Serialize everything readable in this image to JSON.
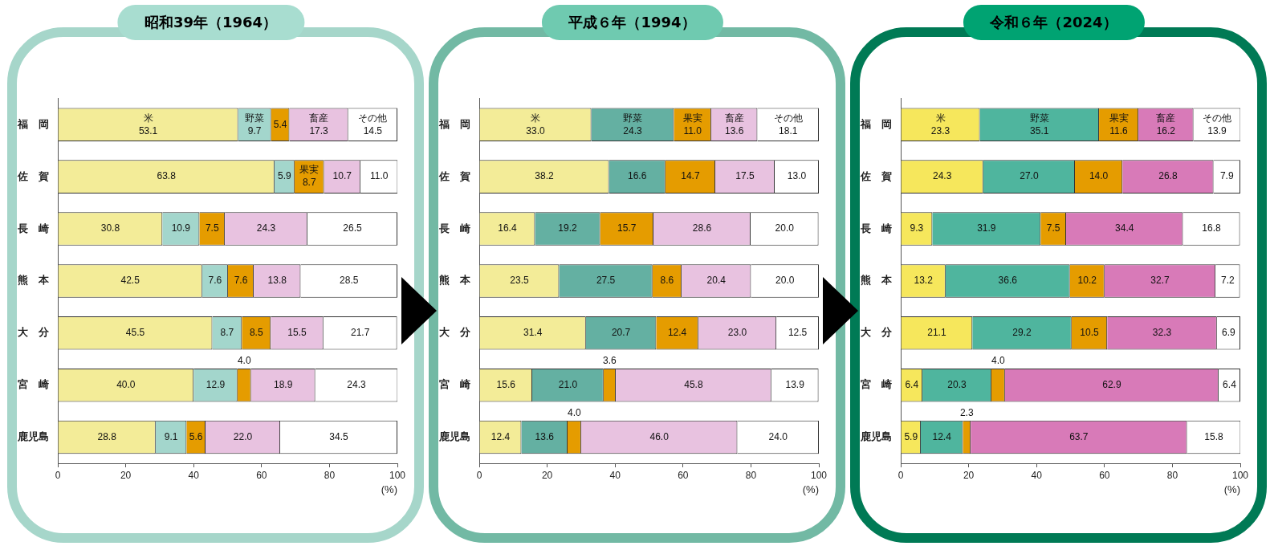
{
  "chart_data": [
    {
      "type": "bar",
      "title": "昭和39年（1964）",
      "orientation": "horizontal",
      "stacked": true,
      "legend": false,
      "grid": false,
      "xlabel": "(%)",
      "xlim": [
        0,
        100
      ],
      "xticks": [
        0,
        20,
        40,
        60,
        80,
        100
      ],
      "categories": [
        "福　岡",
        "佐　賀",
        "長　崎",
        "熊　本",
        "大　分",
        "宮　崎",
        "鹿児島"
      ],
      "series": [
        {
          "name": "米",
          "color": "#f3ec98",
          "values": [
            53.1,
            63.8,
            30.8,
            42.5,
            45.5,
            40.0,
            28.8
          ],
          "value_labels": [
            "53.1",
            "63.8",
            "30.8",
            "42.5",
            "45.5",
            "40.0",
            "28.8"
          ]
        },
        {
          "name": "野菜",
          "color": "#a3d6cc",
          "values": [
            9.7,
            5.9,
            10.9,
            7.6,
            8.7,
            12.9,
            9.1
          ],
          "value_labels": [
            "9.7",
            "5.9",
            "10.9",
            "7.6",
            "8.7",
            "12.9",
            "9.1"
          ]
        },
        {
          "name": "果実",
          "color": "#e59c00",
          "values": [
            5.4,
            8.7,
            7.5,
            7.6,
            8.5,
            4.0,
            5.6
          ],
          "value_labels": [
            "5.4",
            "8.7",
            "7.5",
            "7.6",
            "8.5",
            "4.0",
            "5.6"
          ]
        },
        {
          "name": "畜産",
          "color": "#e8c2e0",
          "values": [
            17.3,
            10.7,
            24.3,
            13.8,
            15.5,
            18.9,
            22.0
          ],
          "value_labels": [
            "17.3",
            "10.7",
            "24.3",
            "13.8",
            "15.5",
            "18.9",
            "22.0"
          ]
        },
        {
          "name": "その他",
          "color": "#ffffff",
          "values": [
            14.5,
            11.0,
            26.5,
            28.5,
            21.7,
            24.3,
            34.5
          ],
          "value_labels": [
            "14.5",
            "11.0",
            "26.5",
            "28.5",
            "21.7",
            "24.3",
            "34.5"
          ]
        }
      ]
    },
    {
      "type": "bar",
      "title": "平成６年（1994）",
      "orientation": "horizontal",
      "stacked": true,
      "legend": false,
      "grid": false,
      "xlabel": "(%)",
      "xlim": [
        0,
        100
      ],
      "xticks": [
        0,
        20,
        40,
        60,
        80,
        100
      ],
      "categories": [
        "福　岡",
        "佐　賀",
        "長　崎",
        "熊　本",
        "大　分",
        "宮　崎",
        "鹿児島"
      ],
      "series": [
        {
          "name": "米",
          "color": "#f3ec98",
          "values": [
            33.0,
            38.2,
            16.4,
            23.5,
            31.4,
            15.6,
            12.4
          ],
          "value_labels": [
            "33.0",
            "38.2",
            "16.4",
            "23.5",
            "31.4",
            "15.6",
            "12.4"
          ]
        },
        {
          "name": "野菜",
          "color": "#64b0a2",
          "values": [
            24.3,
            16.6,
            19.2,
            27.5,
            20.7,
            21.0,
            13.6
          ],
          "value_labels": [
            "24.3",
            "16.6",
            "19.2",
            "27.5",
            "20.7",
            "21.0",
            "13.6"
          ]
        },
        {
          "name": "果実",
          "color": "#e59c00",
          "values": [
            11.0,
            14.7,
            15.7,
            8.6,
            12.4,
            3.6,
            4.0
          ],
          "value_labels": [
            "11.0",
            "14.7",
            "15.7",
            "8.6",
            "12.4",
            "3.6",
            "4.0"
          ]
        },
        {
          "name": "畜産",
          "color": "#e8c2e0",
          "values": [
            13.6,
            17.5,
            28.6,
            20.4,
            23.0,
            45.8,
            46.0
          ],
          "value_labels": [
            "13.6",
            "17.5",
            "28.6",
            "20.4",
            "23.0",
            "45.8",
            "46.0"
          ]
        },
        {
          "name": "その他",
          "color": "#ffffff",
          "values": [
            18.1,
            13.0,
            20.0,
            20.0,
            12.5,
            13.9,
            24.0
          ],
          "value_labels": [
            "18.1",
            "13.0",
            "20.0",
            "20.0",
            "12.5",
            "13.9",
            "24.0"
          ]
        }
      ]
    },
    {
      "type": "bar",
      "title": "令和６年（2024）",
      "orientation": "horizontal",
      "stacked": true,
      "legend": false,
      "grid": false,
      "xlabel": "(%)",
      "xlim": [
        0,
        100
      ],
      "xticks": [
        0,
        20,
        40,
        60,
        80,
        100
      ],
      "categories": [
        "福　岡",
        "佐　賀",
        "長　崎",
        "熊　本",
        "大　分",
        "宮　崎",
        "鹿児島"
      ],
      "series": [
        {
          "name": "米",
          "color": "#f6e75c",
          "values": [
            23.3,
            24.3,
            9.3,
            13.2,
            21.1,
            6.4,
            5.9
          ],
          "value_labels": [
            "23.3",
            "24.3",
            "9.3",
            "13.2",
            "21.1",
            "6.4",
            "5.9"
          ]
        },
        {
          "name": "野菜",
          "color": "#4fb59e",
          "values": [
            35.1,
            27.0,
            31.9,
            36.6,
            29.2,
            20.3,
            12.4
          ],
          "value_labels": [
            "35.1",
            "27.0",
            "31.9",
            "36.6",
            "29.2",
            "20.3",
            "12.4"
          ]
        },
        {
          "name": "果実",
          "color": "#e59c00",
          "values": [
            11.6,
            14.0,
            7.5,
            10.2,
            10.5,
            4.0,
            2.3
          ],
          "value_labels": [
            "11.6",
            "14.0",
            "7.5",
            "10.2",
            "10.5",
            "4.0",
            "2.3"
          ]
        },
        {
          "name": "畜産",
          "color": "#d87ab8",
          "values": [
            16.2,
            26.8,
            34.4,
            32.7,
            32.3,
            62.9,
            63.7
          ],
          "value_labels": [
            "16.2",
            "26.8",
            "34.4",
            "32.7",
            "32.3",
            "62.9",
            "63.7"
          ]
        },
        {
          "name": "その他",
          "color": "#ffffff",
          "values": [
            13.9,
            7.9,
            16.8,
            7.2,
            6.9,
            6.4,
            15.8
          ],
          "value_labels": [
            "13.9",
            "7.9",
            "16.8",
            "7.2",
            "6.9",
            "6.4",
            "15.8"
          ]
        }
      ]
    }
  ]
}
